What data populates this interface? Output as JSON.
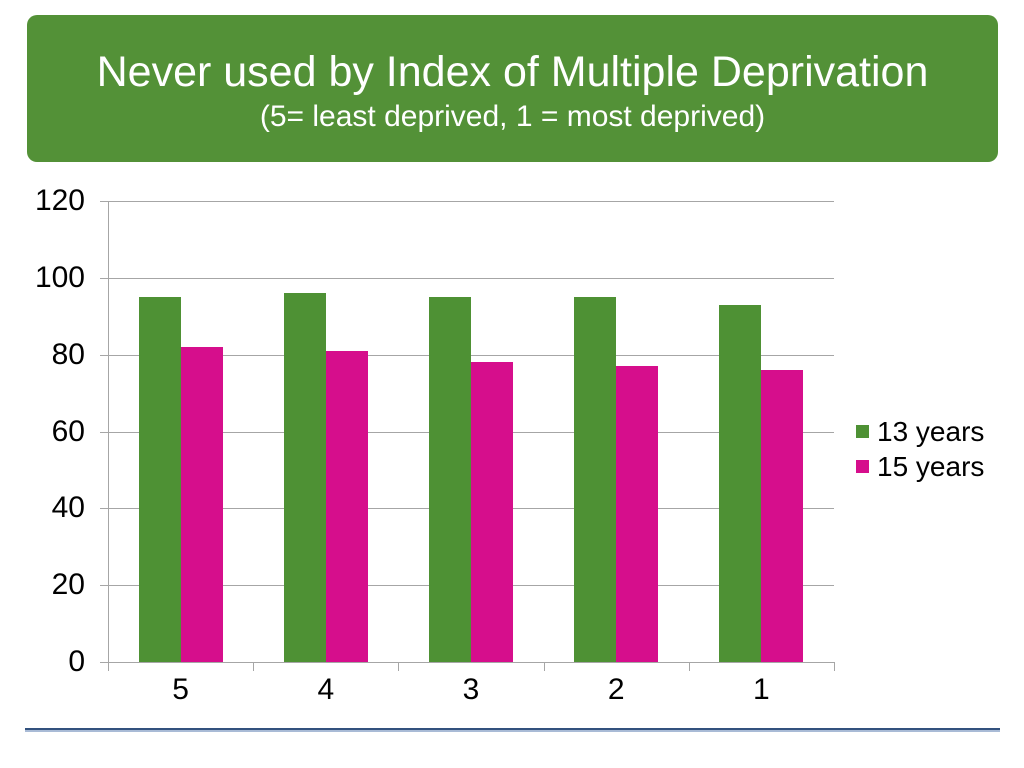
{
  "slide": {
    "title": "Never used by Index of Multiple Deprivation",
    "subtitle": "(5= least deprived, 1 = most deprived)",
    "banner_color": "#539137",
    "divider_dark_color": "#32517E",
    "divider_light_color": "#A9BBD6"
  },
  "chart_data": {
    "type": "bar",
    "title": "",
    "xlabel": "",
    "ylabel": "",
    "categories": [
      "5",
      "4",
      "3",
      "2",
      "1"
    ],
    "series": [
      {
        "name": "13 years",
        "color": "#4E9134",
        "values": [
          95,
          96,
          95,
          95,
          93
        ]
      },
      {
        "name": "15 years",
        "color": "#D60E8C",
        "values": [
          82,
          81,
          78,
          77,
          76
        ]
      }
    ],
    "ylim": [
      0,
      120
    ],
    "yticks": [
      0,
      20,
      40,
      60,
      80,
      100,
      120
    ],
    "grid": true,
    "legend_position": "right",
    "gridline_color": "#A6A6A6",
    "axis_color": "#A6A6A6",
    "tick_label_color": "#000000"
  }
}
